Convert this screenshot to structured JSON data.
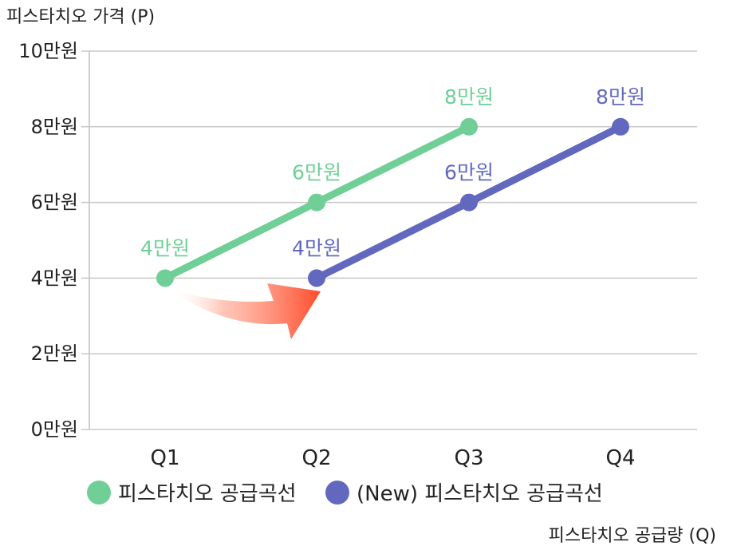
{
  "chart_data": {
    "type": "line",
    "title": "",
    "ylabel": "피스타치오 가격 (P)",
    "xlabel": "피스타치오 공급량 (Q)",
    "categories": [
      "Q1",
      "Q2",
      "Q3",
      "Q4"
    ],
    "yticks": [
      {
        "value": 0,
        "label": "0만원"
      },
      {
        "value": 2,
        "label": "2만원"
      },
      {
        "value": 4,
        "label": "4만원"
      },
      {
        "value": 6,
        "label": "6만원"
      },
      {
        "value": 8,
        "label": "8만원"
      },
      {
        "value": 10,
        "label": "10만원"
      }
    ],
    "ylim": [
      0,
      10
    ],
    "grid": true,
    "legend_position": "bottom",
    "series": [
      {
        "name": "피스타치오 공급곡선",
        "color": "#6fcf97",
        "values": [
          4,
          6,
          8,
          null
        ],
        "labels": [
          "4만원",
          "6만원",
          "8만원",
          ""
        ]
      },
      {
        "name": "(New) 피스타치오 공급곡선",
        "color": "#6268be",
        "values": [
          null,
          4,
          6,
          8
        ],
        "labels": [
          "",
          "4만원",
          "6만원",
          "8만원"
        ]
      }
    ],
    "annotation": {
      "type": "arrow",
      "description_icon": "shift-right-arrow-icon",
      "color": "#ff4b2b"
    }
  }
}
